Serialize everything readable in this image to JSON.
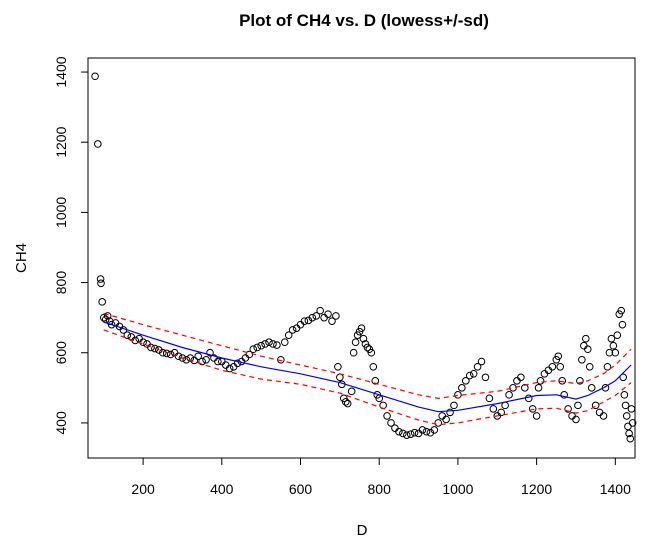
{
  "chart_data": {
    "type": "scatter",
    "title": "Plot of CH4 vs. D   (lowess+/-sd)",
    "xlabel": "D",
    "ylabel": "CH4",
    "xlim": [
      60,
      1450
    ],
    "ylim": [
      300,
      1440
    ],
    "xticks": [
      200,
      400,
      600,
      800,
      1000,
      1200,
      1400
    ],
    "yticks": [
      400,
      600,
      800,
      1000,
      1200,
      1400
    ],
    "grid": false,
    "point_style": "open-circle",
    "colors": {
      "points": "#000000",
      "lowess": "#0000ff",
      "sd_bands": "#ff0000"
    },
    "series": [
      {
        "type": "scatter",
        "points": [
          [
            78,
            1388
          ],
          [
            85,
            1195
          ],
          [
            92,
            810
          ],
          [
            93,
            798
          ],
          [
            96,
            745
          ],
          [
            100,
            700
          ],
          [
            105,
            695
          ],
          [
            110,
            705
          ],
          [
            115,
            690
          ],
          [
            120,
            680
          ],
          [
            130,
            685
          ],
          [
            140,
            675
          ],
          [
            150,
            665
          ],
          [
            160,
            650
          ],
          [
            170,
            645
          ],
          [
            180,
            635
          ],
          [
            190,
            640
          ],
          [
            200,
            630
          ],
          [
            210,
            625
          ],
          [
            220,
            615
          ],
          [
            230,
            612
          ],
          [
            240,
            608
          ],
          [
            250,
            600
          ],
          [
            260,
            598
          ],
          [
            270,
            595
          ],
          [
            280,
            600
          ],
          [
            290,
            590
          ],
          [
            300,
            585
          ],
          [
            310,
            580
          ],
          [
            320,
            585
          ],
          [
            330,
            578
          ],
          [
            340,
            590
          ],
          [
            350,
            575
          ],
          [
            360,
            580
          ],
          [
            370,
            600
          ],
          [
            380,
            585
          ],
          [
            390,
            575
          ],
          [
            400,
            575
          ],
          [
            410,
            565
          ],
          [
            420,
            555
          ],
          [
            430,
            560
          ],
          [
            440,
            570
          ],
          [
            450,
            575
          ],
          [
            460,
            585
          ],
          [
            470,
            595
          ],
          [
            480,
            610
          ],
          [
            490,
            615
          ],
          [
            500,
            620
          ],
          [
            510,
            625
          ],
          [
            520,
            630
          ],
          [
            530,
            625
          ],
          [
            540,
            622
          ],
          [
            550,
            580
          ],
          [
            560,
            630
          ],
          [
            570,
            650
          ],
          [
            580,
            665
          ],
          [
            590,
            670
          ],
          [
            600,
            680
          ],
          [
            610,
            690
          ],
          [
            620,
            692
          ],
          [
            630,
            700
          ],
          [
            640,
            705
          ],
          [
            650,
            720
          ],
          [
            660,
            700
          ],
          [
            670,
            710
          ],
          [
            680,
            690
          ],
          [
            690,
            705
          ],
          [
            695,
            560
          ],
          [
            700,
            530
          ],
          [
            705,
            510
          ],
          [
            710,
            470
          ],
          [
            715,
            460
          ],
          [
            720,
            455
          ],
          [
            730,
            490
          ],
          [
            735,
            600
          ],
          [
            740,
            630
          ],
          [
            745,
            650
          ],
          [
            750,
            660
          ],
          [
            755,
            670
          ],
          [
            760,
            640
          ],
          [
            765,
            625
          ],
          [
            770,
            615
          ],
          [
            775,
            610
          ],
          [
            780,
            600
          ],
          [
            785,
            560
          ],
          [
            790,
            520
          ],
          [
            795,
            480
          ],
          [
            800,
            470
          ],
          [
            810,
            450
          ],
          [
            820,
            420
          ],
          [
            830,
            400
          ],
          [
            840,
            385
          ],
          [
            850,
            375
          ],
          [
            860,
            370
          ],
          [
            870,
            365
          ],
          [
            880,
            368
          ],
          [
            890,
            372
          ],
          [
            900,
            370
          ],
          [
            910,
            380
          ],
          [
            920,
            375
          ],
          [
            930,
            372
          ],
          [
            940,
            380
          ],
          [
            950,
            400
          ],
          [
            960,
            420
          ],
          [
            970,
            410
          ],
          [
            980,
            430
          ],
          [
            990,
            450
          ],
          [
            1000,
            480
          ],
          [
            1010,
            500
          ],
          [
            1020,
            520
          ],
          [
            1030,
            535
          ],
          [
            1040,
            540
          ],
          [
            1050,
            560
          ],
          [
            1060,
            575
          ],
          [
            1070,
            530
          ],
          [
            1080,
            470
          ],
          [
            1090,
            440
          ],
          [
            1100,
            420
          ],
          [
            1110,
            430
          ],
          [
            1120,
            450
          ],
          [
            1130,
            480
          ],
          [
            1140,
            500
          ],
          [
            1150,
            520
          ],
          [
            1160,
            530
          ],
          [
            1170,
            500
          ],
          [
            1180,
            470
          ],
          [
            1190,
            440
          ],
          [
            1200,
            420
          ],
          [
            1205,
            500
          ],
          [
            1210,
            520
          ],
          [
            1220,
            540
          ],
          [
            1230,
            550
          ],
          [
            1240,
            560
          ],
          [
            1250,
            580
          ],
          [
            1255,
            590
          ],
          [
            1260,
            560
          ],
          [
            1265,
            520
          ],
          [
            1270,
            480
          ],
          [
            1280,
            440
          ],
          [
            1290,
            420
          ],
          [
            1300,
            410
          ],
          [
            1305,
            450
          ],
          [
            1310,
            520
          ],
          [
            1315,
            580
          ],
          [
            1320,
            620
          ],
          [
            1325,
            640
          ],
          [
            1330,
            610
          ],
          [
            1335,
            560
          ],
          [
            1340,
            500
          ],
          [
            1350,
            450
          ],
          [
            1360,
            430
          ],
          [
            1370,
            420
          ],
          [
            1375,
            500
          ],
          [
            1380,
            560
          ],
          [
            1385,
            600
          ],
          [
            1390,
            640
          ],
          [
            1395,
            620
          ],
          [
            1400,
            600
          ],
          [
            1405,
            650
          ],
          [
            1410,
            710
          ],
          [
            1415,
            720
          ],
          [
            1418,
            680
          ],
          [
            1420,
            530
          ],
          [
            1423,
            480
          ],
          [
            1426,
            450
          ],
          [
            1429,
            420
          ],
          [
            1432,
            390
          ],
          [
            1435,
            370
          ],
          [
            1438,
            355
          ],
          [
            1441,
            440
          ],
          [
            1444,
            400
          ]
        ]
      },
      {
        "type": "line",
        "name_hidden": true,
        "points": [
          [
            100,
            688
          ],
          [
            200,
            650
          ],
          [
            300,
            615
          ],
          [
            400,
            585
          ],
          [
            500,
            560
          ],
          [
            600,
            540
          ],
          [
            700,
            515
          ],
          [
            800,
            480
          ],
          [
            900,
            445
          ],
          [
            950,
            432
          ],
          [
            1000,
            436
          ],
          [
            1100,
            455
          ],
          [
            1200,
            478
          ],
          [
            1250,
            480
          ],
          [
            1300,
            468
          ],
          [
            1330,
            478
          ],
          [
            1370,
            500
          ],
          [
            1400,
            520
          ],
          [
            1440,
            565
          ]
        ]
      },
      {
        "type": "line",
        "dashed": true,
        "points": [
          [
            100,
            712
          ],
          [
            200,
            680
          ],
          [
            300,
            650
          ],
          [
            400,
            620
          ],
          [
            500,
            590
          ],
          [
            600,
            565
          ],
          [
            700,
            540
          ],
          [
            800,
            510
          ],
          [
            900,
            480
          ],
          [
            950,
            470
          ],
          [
            1000,
            478
          ],
          [
            1100,
            490
          ],
          [
            1200,
            515
          ],
          [
            1250,
            520
          ],
          [
            1300,
            512
          ],
          [
            1330,
            520
          ],
          [
            1370,
            540
          ],
          [
            1400,
            565
          ],
          [
            1440,
            610
          ]
        ]
      },
      {
        "type": "line",
        "dashed": true,
        "points": [
          [
            100,
            665
          ],
          [
            200,
            625
          ],
          [
            300,
            585
          ],
          [
            400,
            550
          ],
          [
            500,
            525
          ],
          [
            600,
            510
          ],
          [
            700,
            485
          ],
          [
            800,
            445
          ],
          [
            900,
            408
          ],
          [
            950,
            395
          ],
          [
            1000,
            400
          ],
          [
            1100,
            420
          ],
          [
            1200,
            440
          ],
          [
            1250,
            442
          ],
          [
            1300,
            428
          ],
          [
            1330,
            435
          ],
          [
            1370,
            460
          ],
          [
            1400,
            478
          ],
          [
            1440,
            515
          ]
        ]
      }
    ]
  }
}
